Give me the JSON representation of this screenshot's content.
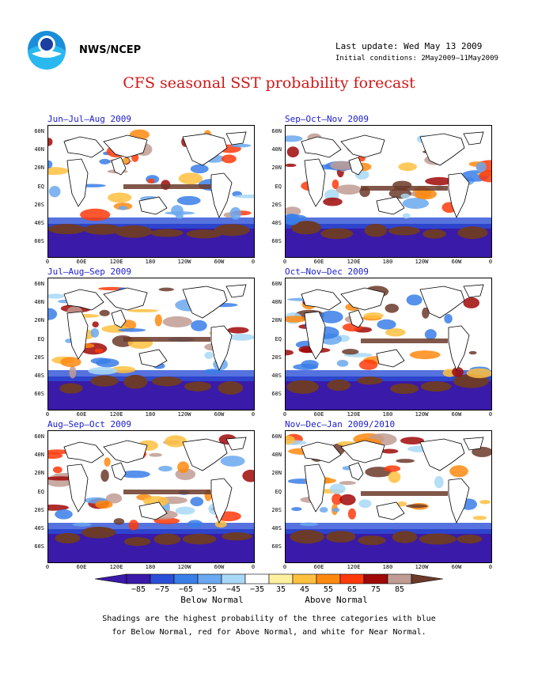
{
  "header": {
    "org": "NWS/NCEP",
    "last_update": "Last update: Wed May 13 2009",
    "initial_conditions": "Initial conditions: 2May2009–11May2009",
    "title": "CFS seasonal SST probability forecast"
  },
  "logo": {
    "icon": "noaa-logo"
  },
  "panels": [
    {
      "title": "Jun–Jul–Aug 2009"
    },
    {
      "title": "Sep–Oct–Nov 2009"
    },
    {
      "title": "Jul–Aug–Sep 2009"
    },
    {
      "title": "Oct–Nov–Dec 2009"
    },
    {
      "title": "Aug–Sep–Oct 2009"
    },
    {
      "title": "Nov–Dec–Jan 2009/2010"
    }
  ],
  "axes": {
    "lat_labels": [
      "60N",
      "40N",
      "20N",
      "EQ",
      "20S",
      "40S",
      "60S"
    ],
    "lon_labels": [
      "0",
      "60E",
      "120E",
      "180",
      "120W",
      "60W",
      "0"
    ]
  },
  "colorbar": {
    "ticks": [
      "−85",
      "−75",
      "−65",
      "−55",
      "−45",
      "−35",
      "35",
      "45",
      "55",
      "65",
      "75",
      "85"
    ],
    "colors": [
      "#3a1aa8",
      "#2b4fd6",
      "#3a7ee8",
      "#6aa8f0",
      "#a8d8f6",
      "#ffffff",
      "#fff0a0",
      "#ffc040",
      "#ff8a10",
      "#ff3a0a",
      "#a00808",
      "#c09c94"
    ],
    "below_label": "Below Normal",
    "above_label": "Above Normal"
  },
  "caption": {
    "line1": "Shadings are the highest probability of the three categories with blue",
    "line2": "for Below Normal, red for Above Normal, and white for Near Normal."
  }
}
